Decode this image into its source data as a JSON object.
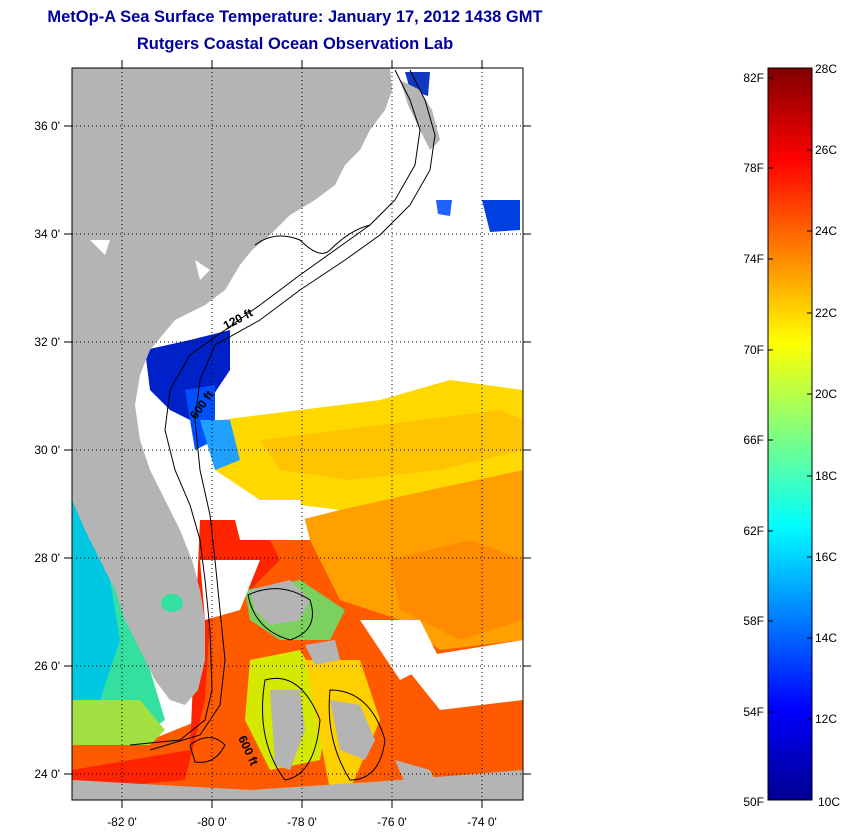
{
  "title": "MetOp-A Sea Surface Temperature:  January 17, 2012 1438 GMT",
  "subtitle": "Rutgers Coastal Ocean Observation Lab",
  "map": {
    "lat_range": [
      23,
      37
    ],
    "lon_range": [
      -83,
      -73
    ],
    "lat_ticks": [
      "36 0'",
      "34 0'",
      "32 0'",
      "30 0'",
      "28 0'",
      "26 0'",
      "24 0'"
    ],
    "lon_ticks": [
      "-82 0'",
      "-80 0'",
      "-78 0'",
      "-76 0'",
      "-74 0'"
    ],
    "isobath_labels": [
      "120 ft",
      "600 ft",
      "600 ft"
    ],
    "colors": {
      "land": "#b4b4b4",
      "no_data": "#ffffff",
      "grid": "#000000"
    }
  },
  "colorbar": {
    "fahrenheit_labels": [
      "82F",
      "78F",
      "74F",
      "70F",
      "66F",
      "62F",
      "58F",
      "54F",
      "50F"
    ],
    "celsius_labels": [
      "28C",
      "26C",
      "24C",
      "22C",
      "20C",
      "18C",
      "16C",
      "14C",
      "12C",
      "10C"
    ],
    "range_c": [
      10,
      28
    ],
    "colormap": "jet"
  }
}
